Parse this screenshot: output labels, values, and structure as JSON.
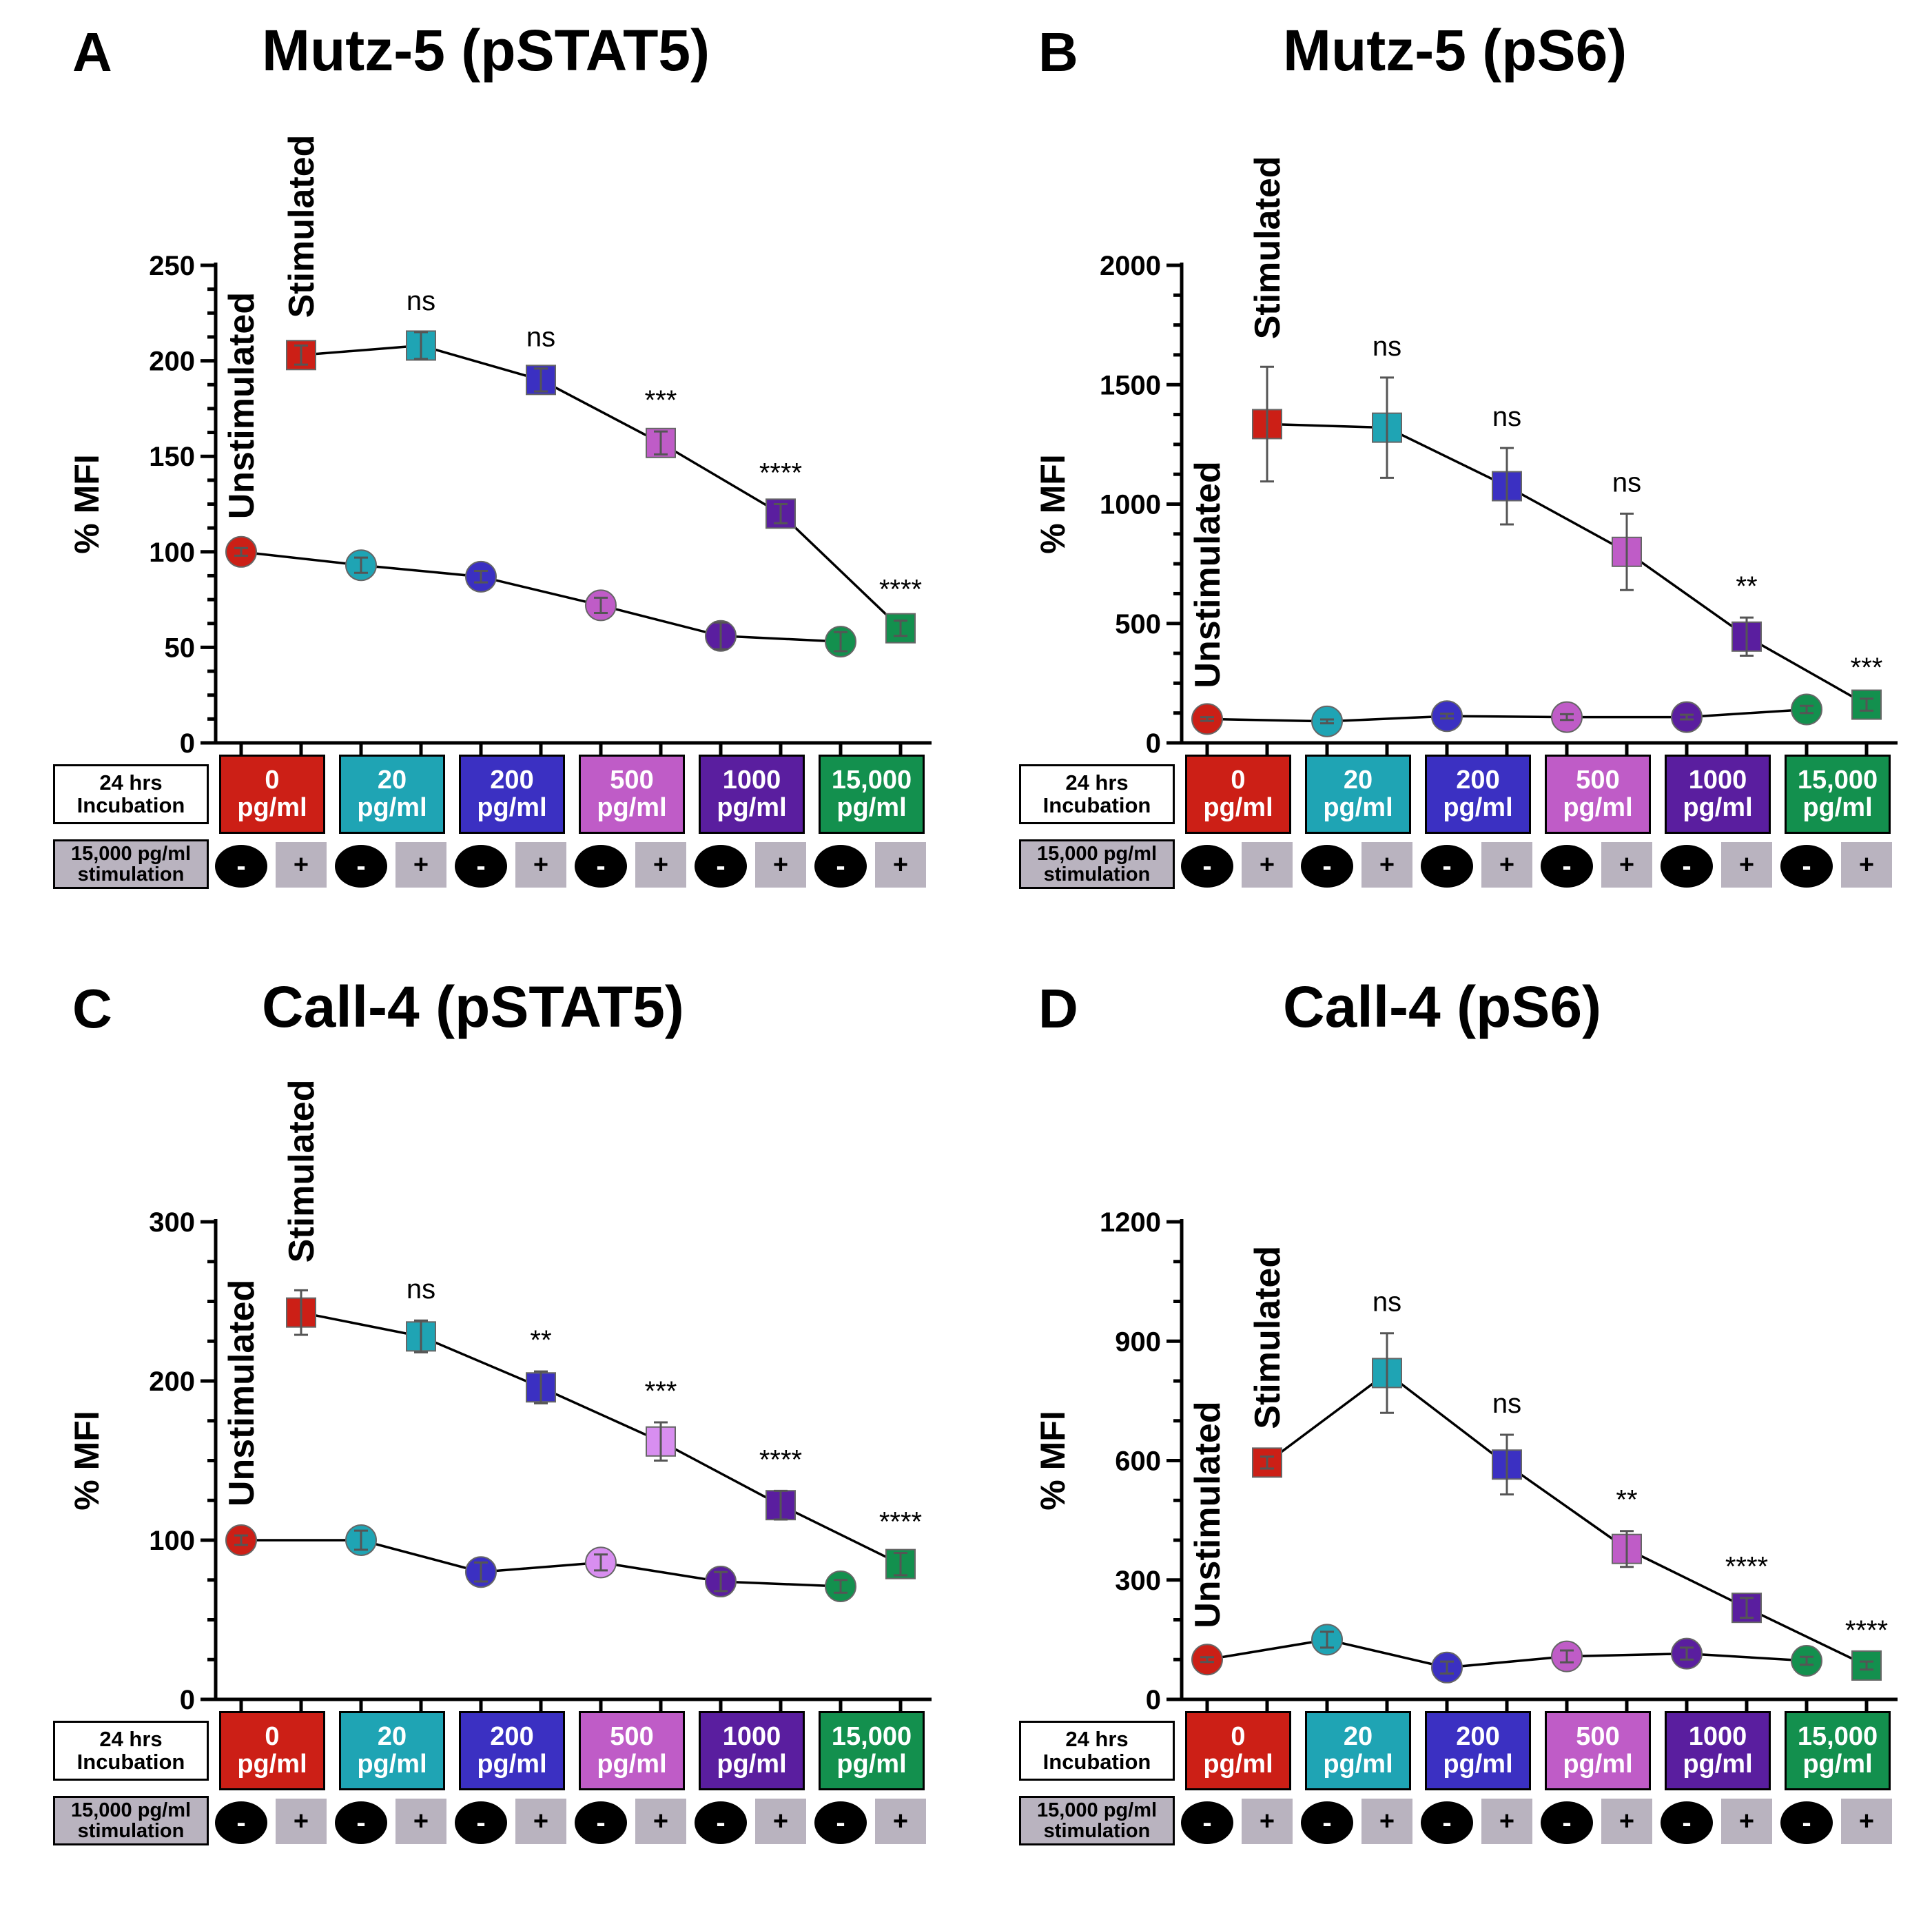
{
  "common": {
    "incubation_label": [
      "24 hrs",
      "Incubation"
    ],
    "stimulation_label": [
      "15,000 pg/ml",
      "stimulation"
    ],
    "concentrations": [
      {
        "value": "0",
        "unit": "pg/ml",
        "color": "#cc1f16"
      },
      {
        "value": "20",
        "unit": "pg/ml",
        "color": "#1fa4b4"
      },
      {
        "value": "200",
        "unit": "pg/ml",
        "color": "#3b30c2"
      },
      {
        "value": "500",
        "unit": "pg/ml",
        "color": "#bf5cc7"
      },
      {
        "value": "1000",
        "unit": "pg/ml",
        "color": "#5a1e9f"
      },
      {
        "value": "15,000",
        "unit": "pg/ml",
        "color": "#13904e"
      }
    ],
    "minus_sign": "-",
    "plus_sign": "+",
    "ylabel": "% MFI",
    "unstimulated_label": "Unstimulated",
    "stimulated_label": "Stimulated"
  },
  "chart_data": [
    {
      "panel": "A",
      "title": "Mutz-5 (pSTAT5)",
      "type": "line",
      "ylabel": "% MFI",
      "ylim": [
        0,
        250
      ],
      "yticks": [
        0,
        50,
        100,
        150,
        200,
        250
      ],
      "categories": [
        "0 pg/ml",
        "20 pg/ml",
        "200 pg/ml",
        "500 pg/ml",
        "1000 pg/ml",
        "15,000 pg/ml"
      ],
      "series": [
        {
          "name": "Unstimulated",
          "marker": "circle",
          "values": [
            100,
            93,
            87,
            72,
            56,
            53
          ],
          "errors": [
            2,
            4,
            3,
            4,
            7,
            5
          ]
        },
        {
          "name": "Stimulated",
          "marker": "square",
          "values": [
            203,
            208,
            190,
            157,
            120,
            60
          ],
          "errors": [
            5,
            7,
            6,
            6,
            5,
            4
          ]
        }
      ],
      "significance": [
        "ns",
        "ns",
        "***",
        "****",
        "****"
      ],
      "point_colors": [
        "#cc1f16",
        "#1fa4b4",
        "#3b30c2",
        "#bf5cc7",
        "#5a1e9f",
        "#13904e"
      ]
    },
    {
      "panel": "B",
      "title": "Mutz-5 (pS6)",
      "type": "line",
      "ylabel": "% MFI",
      "ylim": [
        0,
        2000
      ],
      "yticks": [
        0,
        500,
        1000,
        1500,
        2000
      ],
      "categories": [
        "0 pg/ml",
        "20 pg/ml",
        "200 pg/ml",
        "500 pg/ml",
        "1000 pg/ml",
        "15,000 pg/ml"
      ],
      "series": [
        {
          "name": "Unstimulated",
          "marker": "circle",
          "values": [
            100,
            90,
            112,
            108,
            108,
            140
          ],
          "errors": [
            8,
            8,
            10,
            12,
            10,
            15
          ]
        },
        {
          "name": "Stimulated",
          "marker": "square",
          "values": [
            1335,
            1320,
            1075,
            800,
            445,
            160
          ],
          "errors": [
            240,
            210,
            160,
            160,
            80,
            25
          ]
        }
      ],
      "significance": [
        "ns",
        "ns",
        "ns",
        "**",
        "***"
      ],
      "point_colors": [
        "#cc1f16",
        "#1fa4b4",
        "#3b30c2",
        "#bf5cc7",
        "#5a1e9f",
        "#13904e"
      ]
    },
    {
      "panel": "C",
      "title": "Call-4 (pSTAT5)",
      "type": "line",
      "ylabel": "% MFI",
      "ylim": [
        0,
        300
      ],
      "yticks": [
        0,
        100,
        200,
        300
      ],
      "categories": [
        "0 pg/ml",
        "20 pg/ml",
        "200 pg/ml",
        "500 pg/ml",
        "1000 pg/ml",
        "15,000 pg/ml"
      ],
      "series": [
        {
          "name": "Unstimulated",
          "marker": "circle",
          "values": [
            100,
            100,
            80,
            86,
            74,
            71
          ],
          "errors": [
            3,
            6,
            6,
            5,
            6,
            4
          ]
        },
        {
          "name": "Stimulated",
          "marker": "square",
          "values": [
            243,
            228,
            196,
            162,
            122,
            85
          ],
          "errors": [
            14,
            10,
            10,
            12,
            9,
            7
          ]
        }
      ],
      "significance": [
        "ns",
        "**",
        "***",
        "****",
        "****"
      ],
      "point_colors": [
        "#cc1f16",
        "#1fa4b4",
        "#3b30c2",
        "#d88ef0",
        "#5a1e9f",
        "#13904e"
      ]
    },
    {
      "panel": "D",
      "title": "Call-4 (pS6)",
      "type": "line",
      "ylabel": "% MFI",
      "ylim": [
        0,
        1200
      ],
      "yticks": [
        0,
        300,
        600,
        900,
        1200
      ],
      "categories": [
        "0 pg/ml",
        "20 pg/ml",
        "200 pg/ml",
        "500 pg/ml",
        "1000 pg/ml",
        "15,000 pg/ml"
      ],
      "series": [
        {
          "name": "Unstimulated",
          "marker": "circle",
          "values": [
            100,
            150,
            80,
            108,
            115,
            97
          ],
          "errors": [
            6,
            20,
            15,
            15,
            15,
            10
          ]
        },
        {
          "name": "Stimulated",
          "marker": "square",
          "values": [
            595,
            820,
            590,
            378,
            230,
            85
          ],
          "errors": [
            15,
            100,
            75,
            45,
            25,
            10
          ]
        }
      ],
      "significance": [
        "ns",
        "ns",
        "**",
        "****",
        "****"
      ],
      "point_colors": [
        "#cc1f16",
        "#1fa4b4",
        "#3b30c2",
        "#bf5cc7",
        "#5a1e9f",
        "#13904e"
      ]
    }
  ]
}
